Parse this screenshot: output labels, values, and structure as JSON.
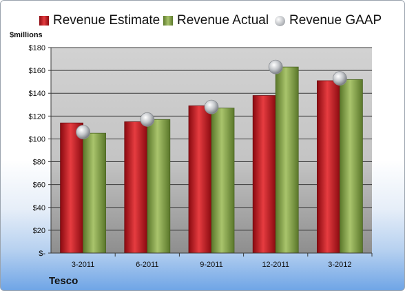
{
  "legend": {
    "estimate": "Revenue Estimate",
    "actual": "Revenue Actual",
    "gaap": "Revenue GAAP"
  },
  "company": "Tesco",
  "colors": {
    "estimate": "#c8191f",
    "actual": "#8fae52",
    "gaap": "#b9bcc0"
  },
  "chart_data": {
    "type": "bar",
    "ylabel": "$millions",
    "categories": [
      "3-2011",
      "6-2011",
      "9-2011",
      "12-2011",
      "3-2012"
    ],
    "series": [
      {
        "name": "Revenue Estimate",
        "values": [
          114,
          115,
          129,
          138,
          151
        ]
      },
      {
        "name": "Revenue Actual",
        "values": [
          105,
          117,
          127,
          163,
          152
        ]
      },
      {
        "name": "Revenue GAAP",
        "values": [
          106,
          117,
          128,
          163,
          153
        ]
      }
    ],
    "ylim": [
      0,
      180
    ],
    "yticks": [
      0,
      20,
      40,
      60,
      80,
      100,
      120,
      140,
      160,
      180
    ],
    "ytick_labels": [
      "$-",
      "$20",
      "$40",
      "$60",
      "$80",
      "$100",
      "$120",
      "$140",
      "$160",
      "$180"
    ],
    "grid": true,
    "legend_position": "top"
  }
}
